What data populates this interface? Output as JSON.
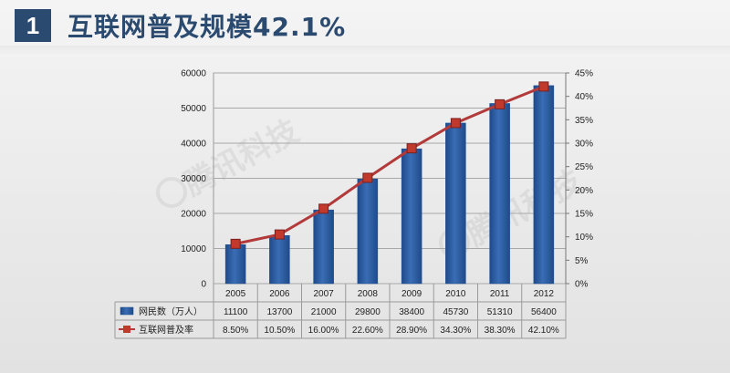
{
  "header": {
    "number": "1",
    "title": "互联网普及规模42.1%"
  },
  "watermark": {
    "text": "腾讯科技"
  },
  "colors": {
    "bar": "#3a6db5",
    "bar_dark": "#1f4a8a",
    "line": "#b23a3a",
    "marker": "#c0392b",
    "title": "#2b4a6f"
  },
  "chart_data": {
    "type": "bar",
    "categories": [
      "2005",
      "2006",
      "2007",
      "2008",
      "2009",
      "2010",
      "2011",
      "2012"
    ],
    "series": [
      {
        "name": "网民数（万人）",
        "type": "bar",
        "axis": "left",
        "values": [
          11100,
          13700,
          21000,
          29800,
          38400,
          45730,
          51310,
          56400
        ],
        "labels": [
          "11100",
          "13700",
          "21000",
          "29800",
          "38400",
          "45730",
          "51310",
          "56400"
        ]
      },
      {
        "name": "互联网普及率",
        "type": "line",
        "axis": "right",
        "values": [
          8.5,
          10.5,
          16.0,
          22.6,
          28.9,
          34.3,
          38.3,
          42.1
        ],
        "labels": [
          "8.50%",
          "10.50%",
          "16.00%",
          "22.60%",
          "28.90%",
          "34.30%",
          "38.30%",
          "42.10%"
        ]
      }
    ],
    "y_left": {
      "min": 0,
      "max": 60000,
      "ticks": [
        "0",
        "10000",
        "20000",
        "30000",
        "40000",
        "50000",
        "60000"
      ]
    },
    "y_right": {
      "min": 0,
      "max": 45,
      "ticks": [
        "0%",
        "5%",
        "10%",
        "15%",
        "20%",
        "25%",
        "30%",
        "35%",
        "40%",
        "45%"
      ]
    },
    "grid": true,
    "legend": "data-table-below"
  }
}
